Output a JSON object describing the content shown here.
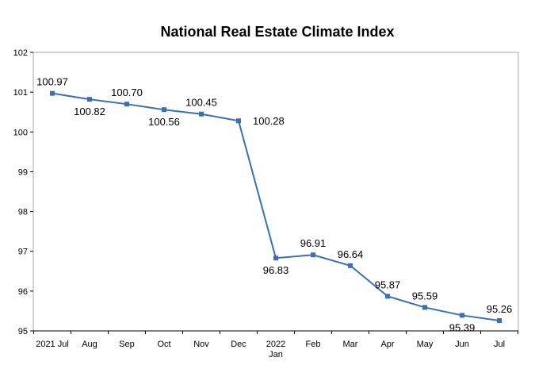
{
  "chart_data": {
    "type": "line",
    "title": "National Real Estate Climate Index",
    "xlabel": "",
    "ylabel": "",
    "categories": [
      [
        "2021 Jul"
      ],
      [
        "Aug"
      ],
      [
        "Sep"
      ],
      [
        "Oct"
      ],
      [
        "Nov"
      ],
      [
        "Dec"
      ],
      [
        "2022",
        "Jan"
      ],
      [
        "Feb"
      ],
      [
        "Mar"
      ],
      [
        "Apr"
      ],
      [
        "May"
      ],
      [
        "Jun"
      ],
      [
        "Jul"
      ]
    ],
    "series": [
      {
        "color": "#3a6fb0",
        "values": [
          100.97,
          100.82,
          100.7,
          100.56,
          100.45,
          100.28,
          96.83,
          96.91,
          96.64,
          95.87,
          95.59,
          95.39,
          95.26
        ],
        "labels": [
          "100.97",
          "100.82",
          "100.70",
          "100.56",
          "100.45",
          "100.28",
          "96.83",
          "96.91",
          "96.64",
          "95.87",
          "95.59",
          "95.39",
          "95.26"
        ],
        "label_positions": [
          "above",
          "below",
          "above",
          "below",
          "above",
          "right",
          "below",
          "above",
          "above",
          "above",
          "above",
          "below",
          "above"
        ]
      }
    ],
    "ylim": [
      95,
      102
    ],
    "yticks": [
      95,
      96,
      97,
      98,
      99,
      100,
      101,
      102
    ],
    "grid": false,
    "legend": "none"
  }
}
